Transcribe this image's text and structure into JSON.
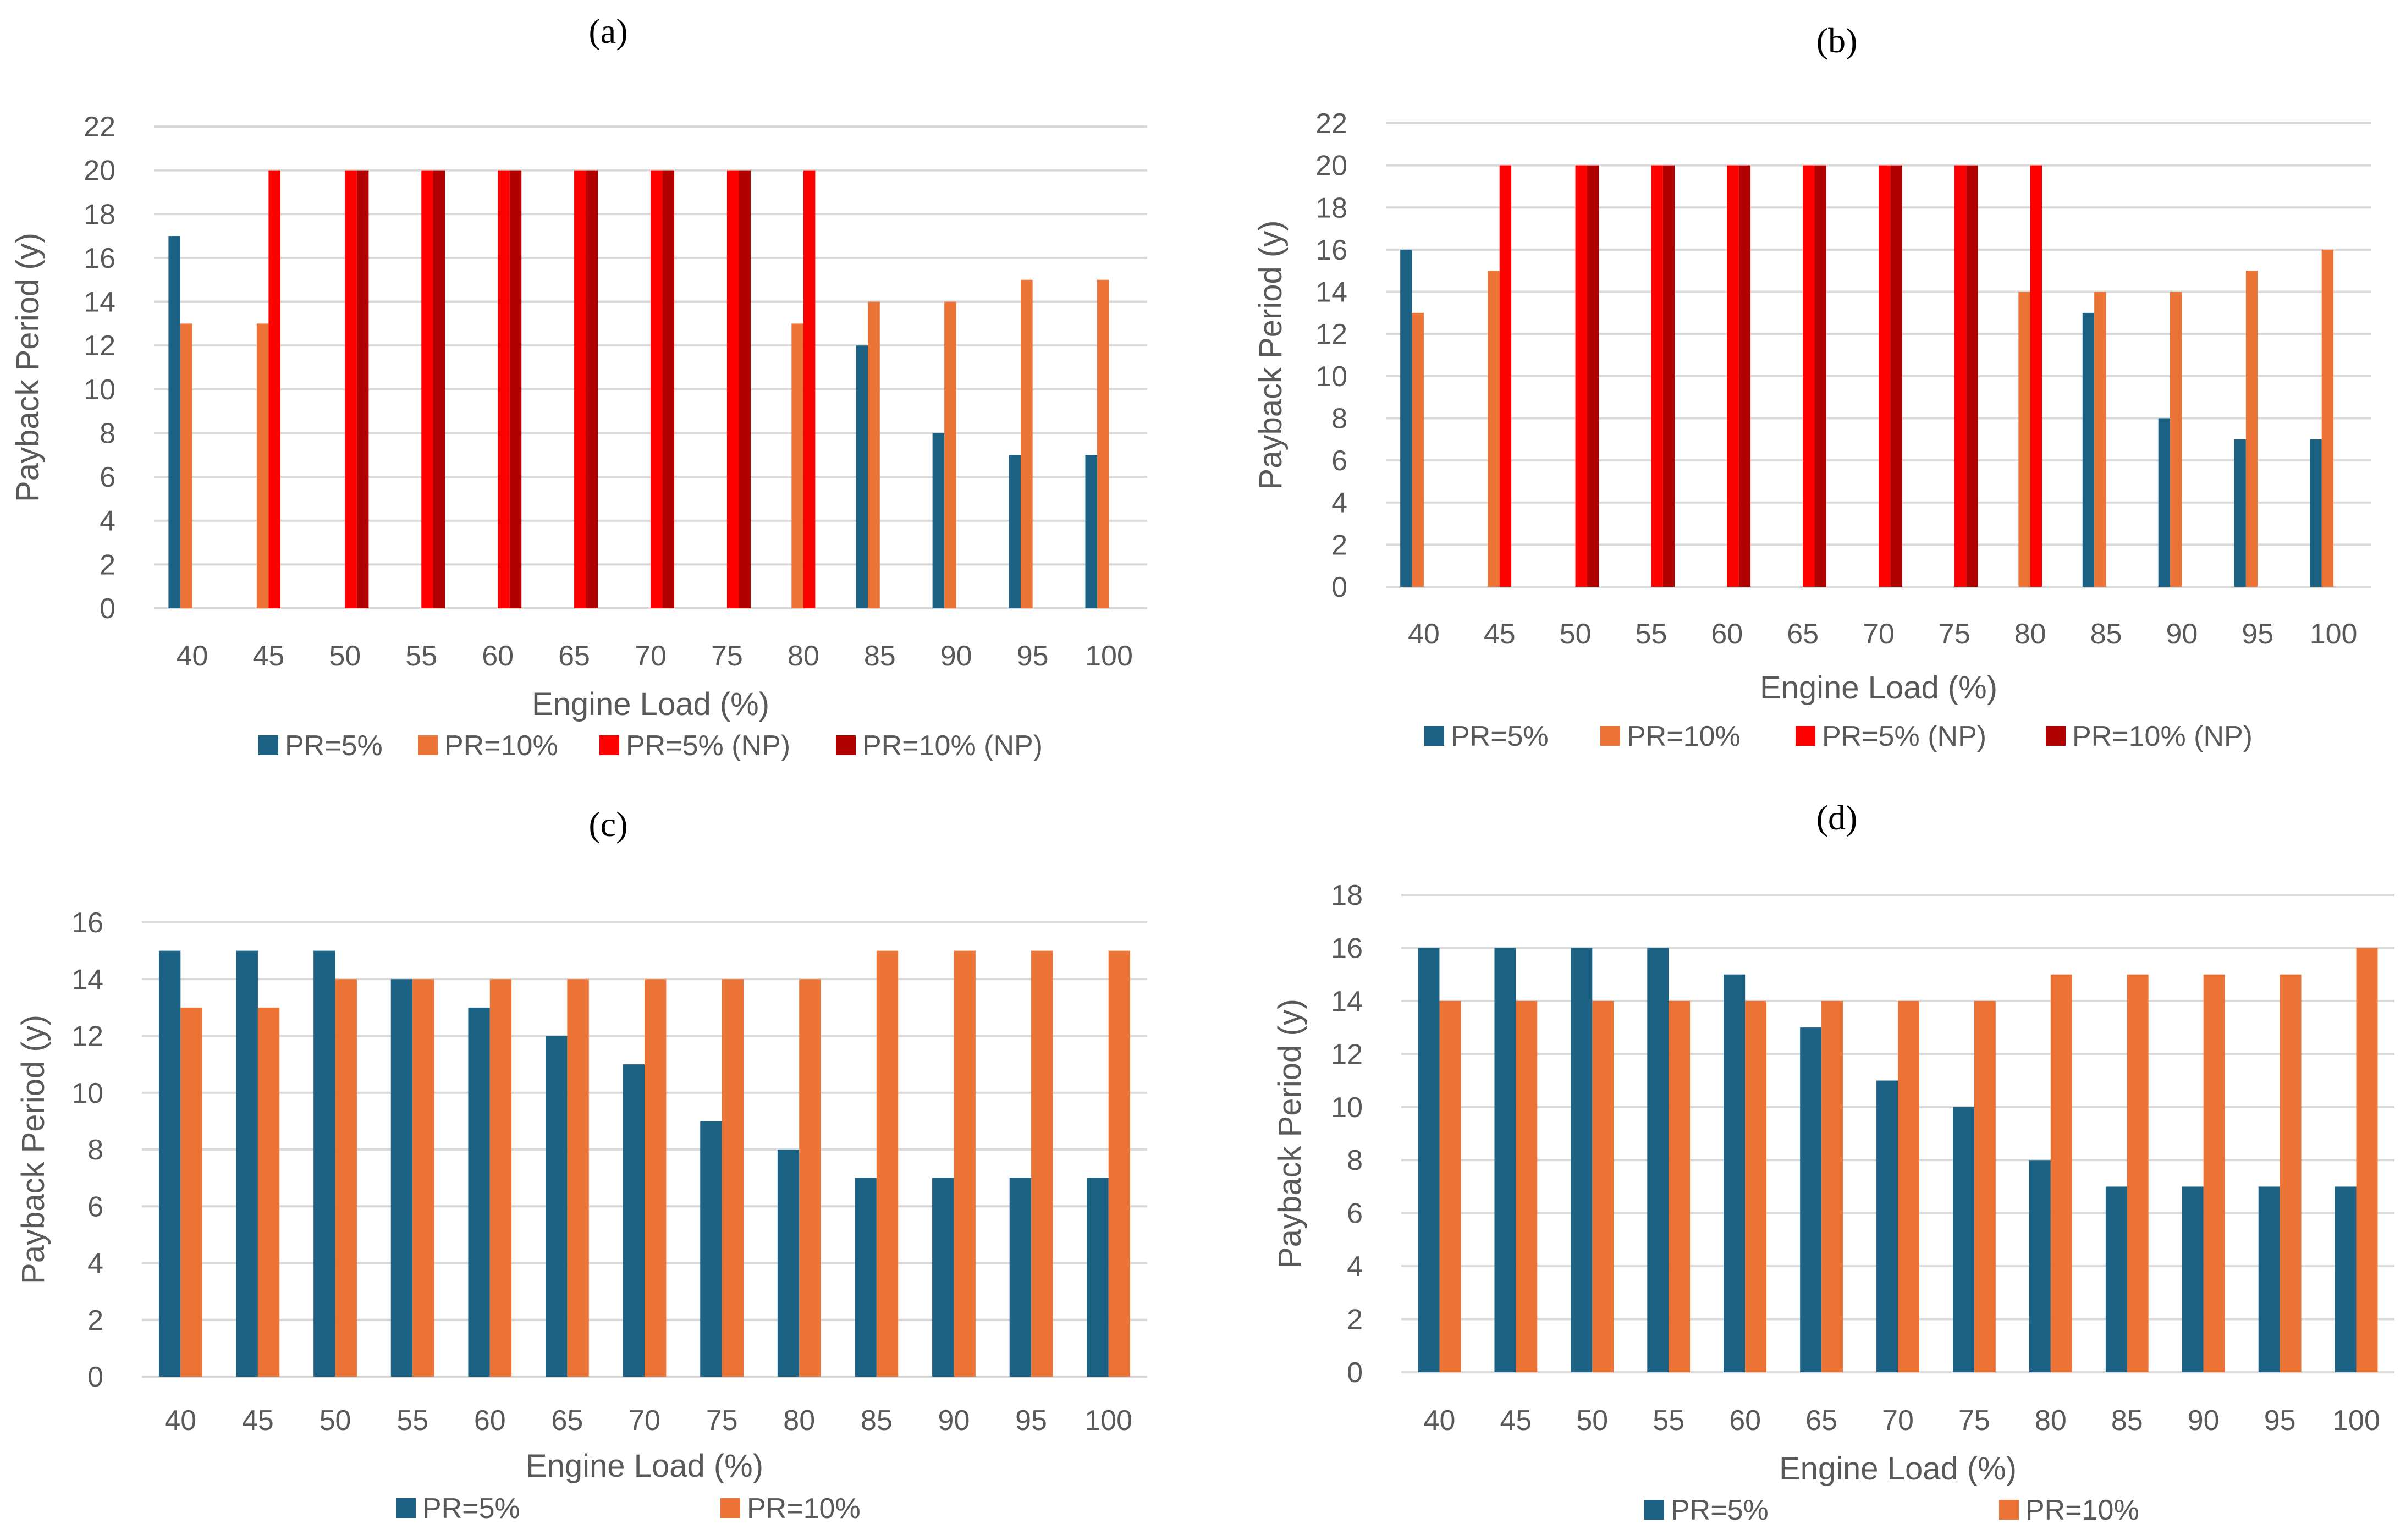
{
  "colors": {
    "pr5": "#1a6184",
    "pr10": "#eb7336",
    "pr5np": "#ff0000",
    "pr10np": "#b00000",
    "grid": "#d9d9d9"
  },
  "chart_data": [
    {
      "type": "bar",
      "title": "(a)",
      "xlabel": "Engine Load (%)",
      "ylabel": "Payback Period (y)",
      "ylim": [
        0,
        22
      ],
      "yticks": [
        "0",
        "2",
        "4",
        "6",
        "8",
        "10",
        "12",
        "14",
        "16",
        "18",
        "20",
        "22"
      ],
      "categories": [
        "40",
        "45",
        "50",
        "55",
        "60",
        "65",
        "70",
        "75",
        "80",
        "85",
        "90",
        "95",
        "100"
      ],
      "legend_position": "bottom",
      "grid": true,
      "series": [
        {
          "name": "PR=5%",
          "color_key": "pr5",
          "values": [
            17,
            null,
            null,
            null,
            null,
            null,
            null,
            null,
            null,
            12,
            8,
            7,
            7
          ]
        },
        {
          "name": "PR=10%",
          "color_key": "pr10",
          "values": [
            13,
            13,
            null,
            null,
            null,
            null,
            null,
            null,
            13,
            14,
            14,
            15,
            15
          ]
        },
        {
          "name": "PR=5% (NP)",
          "color_key": "pr5np",
          "values": [
            null,
            20,
            20,
            20,
            20,
            20,
            20,
            20,
            20,
            null,
            null,
            null,
            null
          ]
        },
        {
          "name": "PR=10% (NP)",
          "color_key": "pr10np",
          "values": [
            null,
            null,
            20,
            20,
            20,
            20,
            20,
            20,
            null,
            null,
            null,
            null,
            null
          ]
        }
      ]
    },
    {
      "type": "bar",
      "title": "(b)",
      "xlabel": "Engine Load (%)",
      "ylabel": "Payback Period (y)",
      "ylim": [
        0,
        22
      ],
      "yticks": [
        "0",
        "2",
        "4",
        "6",
        "8",
        "10",
        "12",
        "14",
        "16",
        "18",
        "20",
        "22"
      ],
      "categories": [
        "40",
        "45",
        "50",
        "55",
        "60",
        "65",
        "70",
        "75",
        "80",
        "85",
        "90",
        "95",
        "100"
      ],
      "legend_position": "bottom",
      "grid": true,
      "series": [
        {
          "name": "PR=5%",
          "color_key": "pr5",
          "values": [
            16,
            null,
            null,
            null,
            null,
            null,
            null,
            null,
            null,
            13,
            8,
            7,
            7
          ]
        },
        {
          "name": "PR=10%",
          "color_key": "pr10",
          "values": [
            13,
            15,
            null,
            null,
            null,
            null,
            null,
            null,
            14,
            14,
            14,
            15,
            16
          ]
        },
        {
          "name": "PR=5% (NP)",
          "color_key": "pr5np",
          "values": [
            null,
            20,
            20,
            20,
            20,
            20,
            20,
            20,
            20,
            null,
            null,
            null,
            null
          ]
        },
        {
          "name": "PR=10% (NP)",
          "color_key": "pr10np",
          "values": [
            null,
            null,
            20,
            20,
            20,
            20,
            20,
            20,
            null,
            null,
            null,
            null,
            null
          ]
        }
      ]
    },
    {
      "type": "bar",
      "title": "(c)",
      "xlabel": "Engine Load (%)",
      "ylabel": "Payback Period (y)",
      "ylim": [
        0,
        16
      ],
      "yticks": [
        "0",
        "2",
        "4",
        "6",
        "8",
        "10",
        "12",
        "14",
        "16"
      ],
      "categories": [
        "40",
        "45",
        "50",
        "55",
        "60",
        "65",
        "70",
        "75",
        "80",
        "85",
        "90",
        "95",
        "100"
      ],
      "legend_position": "bottom",
      "grid": true,
      "series": [
        {
          "name": "PR=5%",
          "color_key": "pr5",
          "values": [
            15,
            15,
            15,
            14,
            13,
            12,
            11,
            9,
            8,
            7,
            7,
            7,
            7
          ]
        },
        {
          "name": "PR=10%",
          "color_key": "pr10",
          "values": [
            13,
            13,
            14,
            14,
            14,
            14,
            14,
            14,
            14,
            15,
            15,
            15,
            15
          ]
        }
      ]
    },
    {
      "type": "bar",
      "title": "(d)",
      "xlabel": "Engine Load (%)",
      "ylabel": "Payback Period (y)",
      "ylim": [
        0,
        18
      ],
      "yticks": [
        "0",
        "2",
        "4",
        "6",
        "8",
        "10",
        "12",
        "14",
        "16",
        "18"
      ],
      "categories": [
        "40",
        "45",
        "50",
        "55",
        "60",
        "65",
        "70",
        "75",
        "80",
        "85",
        "90",
        "95",
        "100"
      ],
      "legend_position": "bottom",
      "grid": true,
      "series": [
        {
          "name": "PR=5%",
          "color_key": "pr5",
          "values": [
            16,
            16,
            16,
            16,
            15,
            13,
            11,
            10,
            8,
            7,
            7,
            7,
            7
          ]
        },
        {
          "name": "PR=10%",
          "color_key": "pr10",
          "values": [
            14,
            14,
            14,
            14,
            14,
            14,
            14,
            14,
            15,
            15,
            15,
            15,
            16
          ]
        }
      ]
    }
  ]
}
